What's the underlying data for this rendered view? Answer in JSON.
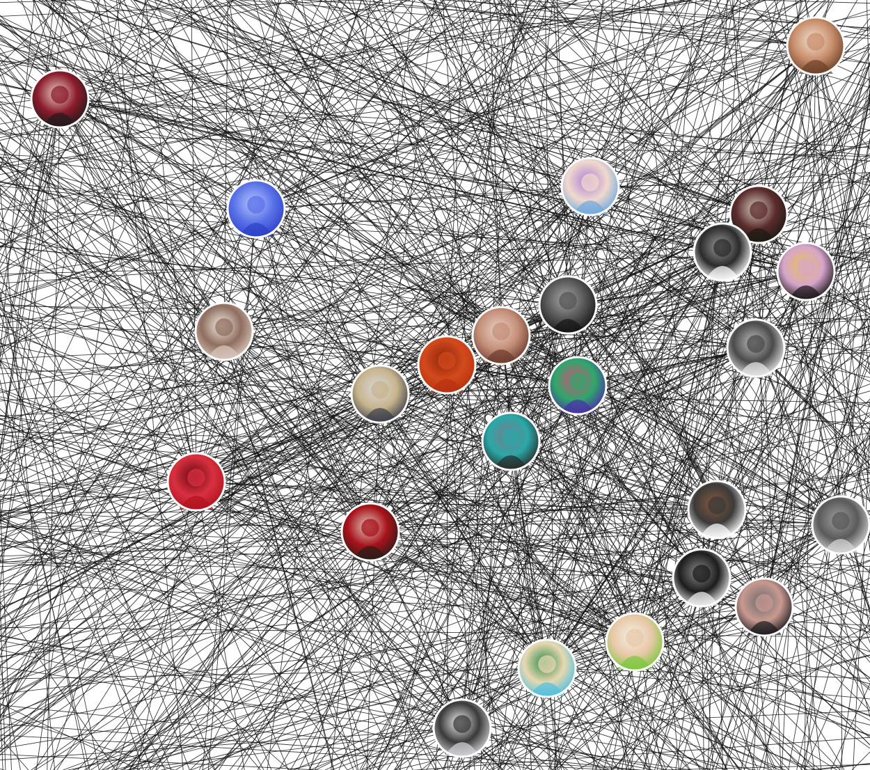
{
  "graph": {
    "background": "#ffffff",
    "edge_color": "#111111",
    "nodes": [
      {
        "id": "man-gesturing-dark-background",
        "colors": [
          "#201a1e",
          "#8b1b2a",
          "#e8d0c8"
        ]
      },
      {
        "id": "curly-hair-young-man",
        "colors": [
          "#6b4028",
          "#c98e6c",
          "#f0e2d4"
        ]
      },
      {
        "id": "blue-tinted-photo",
        "colors": [
          "#2c40c8",
          "#5a72e8",
          "#b9c6ff"
        ]
      },
      {
        "id": "anime-character-blue-hair",
        "colors": [
          "#6fa8de",
          "#f1d9cc",
          "#a97fd8"
        ]
      },
      {
        "id": "dark-window-photo",
        "colors": [
          "#1c1a14",
          "#5b2c2c",
          "#d8cfc0"
        ]
      },
      {
        "id": "sketch-girl-pigtails",
        "colors": [
          "#ffffff",
          "#2b2b2b",
          "#9a9a9a"
        ]
      },
      {
        "id": "girl-rainbow-art",
        "colors": [
          "#1a1518",
          "#d6a5cc",
          "#e6c25a"
        ]
      },
      {
        "id": "woman-mirror-selfie",
        "colors": [
          "#d9c8bd",
          "#8f6e5e",
          "#f3ece6"
        ]
      },
      {
        "id": "dark-portrait-bearded-man",
        "colors": [
          "#141414",
          "#555555",
          "#a8a8a8"
        ]
      },
      {
        "id": "woman-long-hair-portrait",
        "colors": [
          "#6b3a2e",
          "#c48e78",
          "#e9d3c5"
        ]
      },
      {
        "id": "red-orange-knit-hat",
        "colors": [
          "#b8310f",
          "#d24a1c",
          "#8e230a"
        ]
      },
      {
        "id": "sketch-girl-peace-sign",
        "colors": [
          "#e9e9e9",
          "#4a4a4a",
          "#bdbdbd"
        ]
      },
      {
        "id": "woman-glasses-blonde",
        "colors": [
          "#3a3f4a",
          "#c8b48c",
          "#d9d9de"
        ]
      },
      {
        "id": "colorful-abstract-art",
        "colors": [
          "#4a2fa8",
          "#2ea86a",
          "#d84a7c"
        ]
      },
      {
        "id": "two-people-teal-hair",
        "colors": [
          "#2a2a2a",
          "#2aa8a8",
          "#7a7a8a"
        ]
      },
      {
        "id": "red-tinted-portrait",
        "colors": [
          "#b0121e",
          "#d83040",
          "#6a0810"
        ]
      },
      {
        "id": "photographer-with-camera",
        "colors": [
          "#ffffff",
          "#3a3a3a",
          "#8a5a3a"
        ]
      },
      {
        "id": "sketch-old-man",
        "colors": [
          "#d8d8d8",
          "#5a5a5a",
          "#a0a0a0"
        ]
      },
      {
        "id": "woman-red-shadow-face",
        "colors": [
          "#2a1c18",
          "#a8121a",
          "#e0c8c0"
        ]
      },
      {
        "id": "black-white-woman-portrait",
        "colors": [
          "#f4f4f4",
          "#1c1c1c",
          "#8a8a8a"
        ]
      },
      {
        "id": "woman-dark-bob-hair",
        "colors": [
          "#1a1a1e",
          "#c89a90",
          "#6a6a70"
        ]
      },
      {
        "id": "anime-green-hair-man",
        "colors": [
          "#7ac83a",
          "#e8c8a8",
          "#f4f0e6"
        ]
      },
      {
        "id": "beach-woman-photo",
        "colors": [
          "#4ec0e0",
          "#e8d8b0",
          "#2a8a4a"
        ]
      },
      {
        "id": "sketch-girl-glasses",
        "colors": [
          "#d4d4d8",
          "#3a3a3a",
          "#f0f0f2"
        ]
      }
    ]
  }
}
